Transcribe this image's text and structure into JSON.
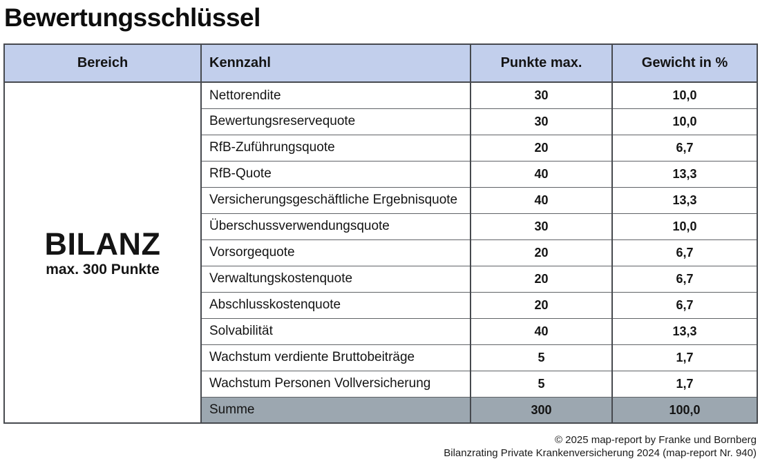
{
  "title": "Bewertungsschlüssel",
  "table": {
    "headers": [
      "Bereich",
      "Kennzahl",
      "Punkte max.",
      "Gewicht in %"
    ],
    "bereich": {
      "name": "BILANZ",
      "subtitle": "max. 300 Punkte"
    },
    "rows": [
      {
        "kennzahl": "Nettorendite",
        "punkte": "30",
        "gewicht": "10,0"
      },
      {
        "kennzahl": "Bewertungsreservequote",
        "punkte": "30",
        "gewicht": "10,0"
      },
      {
        "kennzahl": "RfB-Zuführungsquote",
        "punkte": "20",
        "gewicht": "6,7"
      },
      {
        "kennzahl": "RfB-Quote",
        "punkte": "40",
        "gewicht": "13,3"
      },
      {
        "kennzahl": "Versicherungsgeschäftliche Ergebnisquote",
        "punkte": "40",
        "gewicht": "13,3"
      },
      {
        "kennzahl": "Überschussverwendungsquote",
        "punkte": "30",
        "gewicht": "10,0"
      },
      {
        "kennzahl": "Vorsorgequote",
        "punkte": "20",
        "gewicht": "6,7"
      },
      {
        "kennzahl": "Verwaltungskostenquote",
        "punkte": "20",
        "gewicht": "6,7"
      },
      {
        "kennzahl": "Abschlusskostenquote",
        "punkte": "20",
        "gewicht": "6,7"
      },
      {
        "kennzahl": "Solvabilität",
        "punkte": "40",
        "gewicht": "13,3"
      },
      {
        "kennzahl": "Wachstum verdiente Bruttobeiträge",
        "punkte": "5",
        "gewicht": "1,7"
      },
      {
        "kennzahl": "Wachstum Personen Vollversicherung",
        "punkte": "5",
        "gewicht": "1,7"
      }
    ],
    "summe": {
      "label": "Summe",
      "punkte": "300",
      "gewicht": "100,0"
    }
  },
  "footer": {
    "line1": "© 2025 map-report by Franke und Bornberg",
    "line2": "Bilanzrating Private Krankenversicherung 2024 (map-report Nr. 940)"
  },
  "colors": {
    "header_bg": "#c2cfec",
    "summe_bg": "#9ca7b0",
    "border": "#46494e"
  }
}
